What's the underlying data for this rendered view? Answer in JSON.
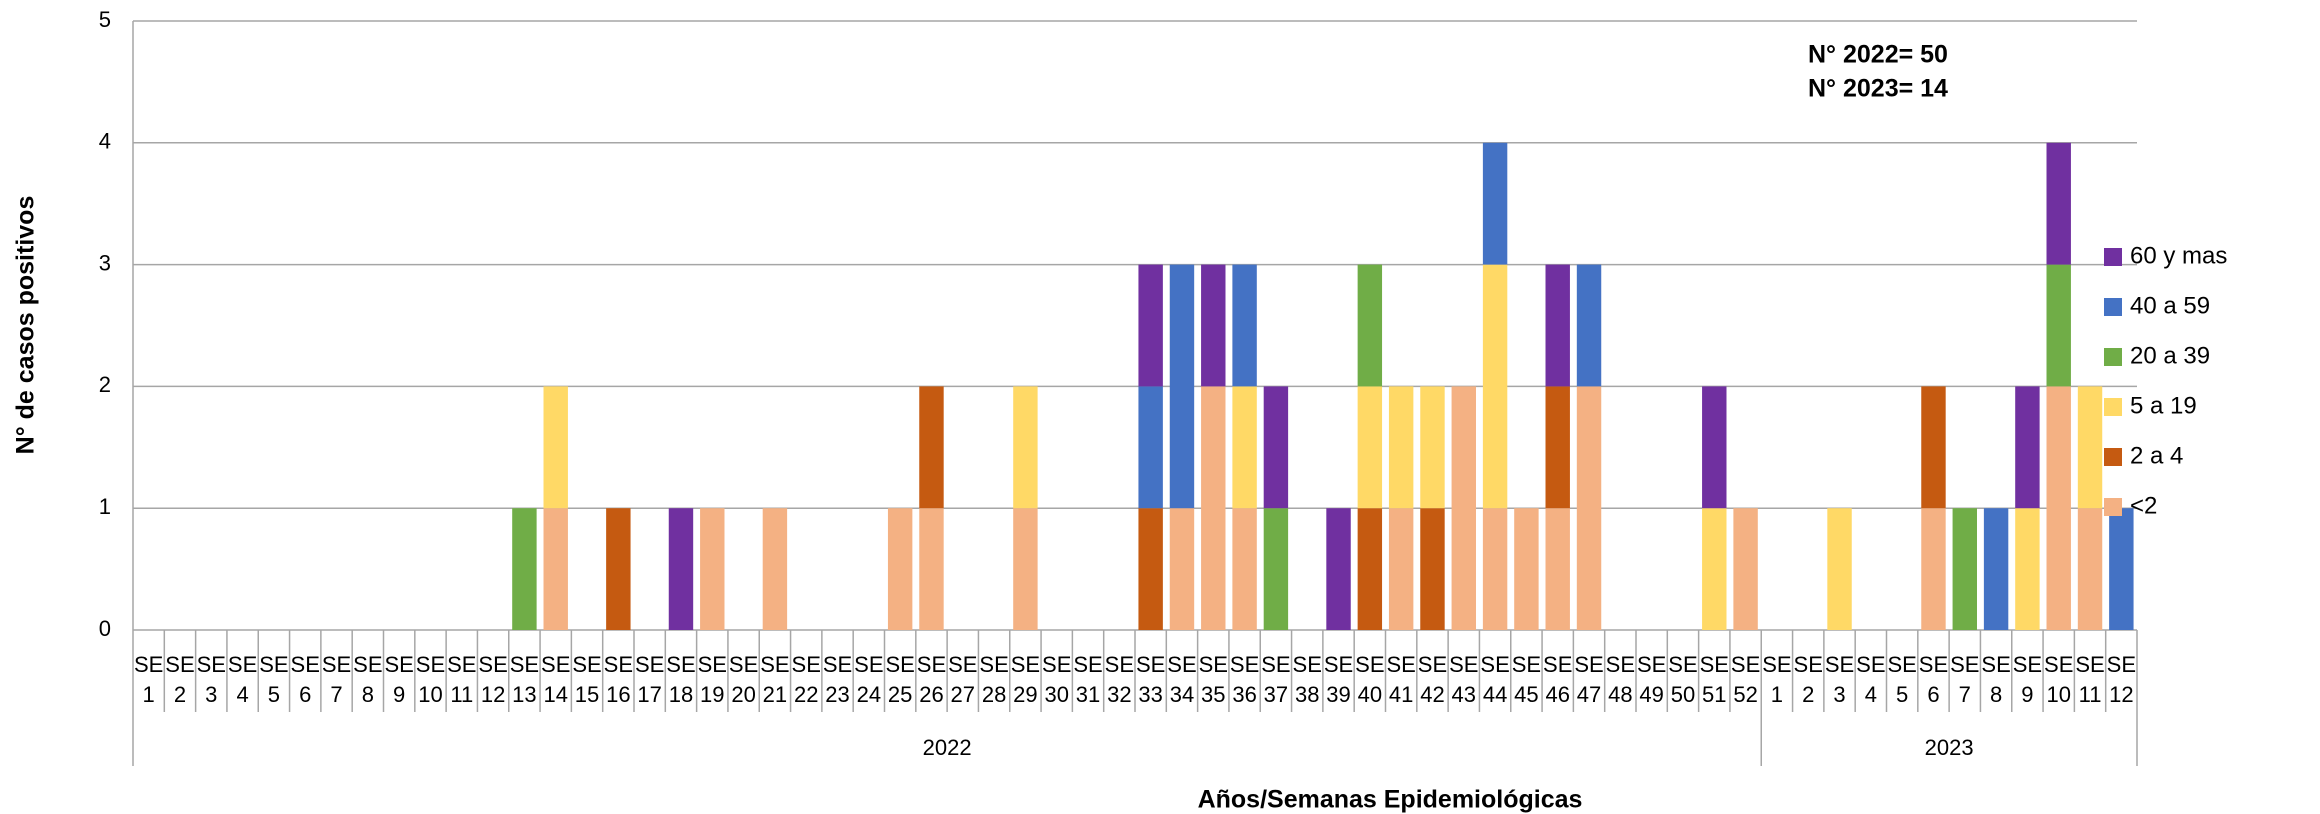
{
  "chart_data": {
    "type": "stacked_bar",
    "x_label": "Años/Semanas Epidemiológicas",
    "y_label": "N° de casos positivos",
    "annotations": [
      "N° 2022= 50",
      "N° 2023= 14"
    ],
    "categories": [
      "SE 1",
      "SE 2",
      "SE 3",
      "SE 4",
      "SE 5",
      "SE 6",
      "SE 7",
      "SE 8",
      "SE 9",
      "SE 10",
      "SE 11",
      "SE 12",
      "SE 13",
      "SE 14",
      "SE 15",
      "SE 16",
      "SE 17",
      "SE 18",
      "SE 19",
      "SE 20",
      "SE 21",
      "SE 22",
      "SE 23",
      "SE 24",
      "SE 25",
      "SE 26",
      "SE 27",
      "SE 28",
      "SE 29",
      "SE 30",
      "SE 31",
      "SE 32",
      "SE 33",
      "SE 34",
      "SE 35",
      "SE 36",
      "SE 37",
      "SE 38",
      "SE 39",
      "SE 40",
      "SE 41",
      "SE 42",
      "SE 43",
      "SE 44",
      "SE 45",
      "SE 46",
      "SE 47",
      "SE 48",
      "SE 49",
      "SE 50",
      "SE 51",
      "SE 52",
      "SE 1",
      "SE 2",
      "SE 3",
      "SE 4",
      "SE 5",
      "SE 6",
      "SE 7",
      "SE 8",
      "SE 9",
      "SE 10",
      "SE 11",
      "SE 12"
    ],
    "groups": [
      {
        "label": "2022",
        "span": 52
      },
      {
        "label": "2023",
        "span": 12
      }
    ],
    "series": [
      {
        "name": "<2",
        "color": "#f4b183",
        "values": [
          0,
          0,
          0,
          0,
          0,
          0,
          0,
          0,
          0,
          0,
          0,
          0,
          0,
          1,
          0,
          0,
          0,
          0,
          1,
          0,
          1,
          0,
          0,
          0,
          1,
          1,
          0,
          0,
          1,
          0,
          0,
          0,
          0,
          1,
          2,
          1,
          0,
          0,
          0,
          0,
          1,
          0,
          2,
          1,
          1,
          1,
          2,
          0,
          0,
          0,
          0,
          1,
          0,
          0,
          0,
          0,
          0,
          1,
          0,
          0,
          0,
          2,
          1,
          0
        ]
      },
      {
        "name": "2 a 4",
        "color": "#c55a11",
        "values": [
          0,
          0,
          0,
          0,
          0,
          0,
          0,
          0,
          0,
          0,
          0,
          0,
          0,
          0,
          0,
          1,
          0,
          0,
          0,
          0,
          0,
          0,
          0,
          0,
          0,
          1,
          0,
          0,
          0,
          0,
          0,
          0,
          1,
          0,
          0,
          0,
          0,
          0,
          0,
          1,
          0,
          1,
          0,
          0,
          0,
          1,
          0,
          0,
          0,
          0,
          0,
          0,
          0,
          0,
          0,
          0,
          0,
          1,
          0,
          0,
          0,
          0,
          0,
          0
        ]
      },
      {
        "name": "5 a 19",
        "color": "#ffd966",
        "values": [
          0,
          0,
          0,
          0,
          0,
          0,
          0,
          0,
          0,
          0,
          0,
          0,
          0,
          1,
          0,
          0,
          0,
          0,
          0,
          0,
          0,
          0,
          0,
          0,
          0,
          0,
          0,
          0,
          1,
          0,
          0,
          0,
          0,
          0,
          0,
          1,
          0,
          0,
          0,
          1,
          1,
          1,
          0,
          2,
          0,
          0,
          0,
          0,
          0,
          0,
          1,
          0,
          0,
          0,
          1,
          0,
          0,
          0,
          0,
          0,
          1,
          0,
          1,
          0
        ]
      },
      {
        "name": "20 a 39",
        "color": "#70ad47",
        "values": [
          0,
          0,
          0,
          0,
          0,
          0,
          0,
          0,
          0,
          0,
          0,
          0,
          1,
          0,
          0,
          0,
          0,
          0,
          0,
          0,
          0,
          0,
          0,
          0,
          0,
          0,
          0,
          0,
          0,
          0,
          0,
          0,
          0,
          0,
          0,
          0,
          1,
          0,
          0,
          1,
          0,
          0,
          0,
          0,
          0,
          0,
          0,
          0,
          0,
          0,
          0,
          0,
          0,
          0,
          0,
          0,
          0,
          0,
          1,
          0,
          0,
          1,
          0,
          0
        ]
      },
      {
        "name": "40 a 59",
        "color": "#4472c4",
        "values": [
          0,
          0,
          0,
          0,
          0,
          0,
          0,
          0,
          0,
          0,
          0,
          0,
          0,
          0,
          0,
          0,
          0,
          0,
          0,
          0,
          0,
          0,
          0,
          0,
          0,
          0,
          0,
          0,
          0,
          0,
          0,
          0,
          1,
          2,
          0,
          1,
          0,
          0,
          0,
          0,
          0,
          0,
          0,
          1,
          0,
          0,
          1,
          0,
          0,
          0,
          0,
          0,
          0,
          0,
          0,
          0,
          0,
          0,
          0,
          1,
          0,
          0,
          0,
          1
        ]
      },
      {
        "name": "60 y mas",
        "color": "#7030a0",
        "values": [
          0,
          0,
          0,
          0,
          0,
          0,
          0,
          0,
          0,
          0,
          0,
          0,
          0,
          0,
          0,
          0,
          0,
          1,
          0,
          0,
          0,
          0,
          0,
          0,
          0,
          0,
          0,
          0,
          0,
          0,
          0,
          0,
          1,
          0,
          1,
          0,
          1,
          0,
          1,
          0,
          0,
          0,
          0,
          0,
          0,
          1,
          0,
          0,
          0,
          0,
          1,
          0,
          0,
          0,
          0,
          0,
          0,
          0,
          0,
          0,
          1,
          1,
          0,
          0
        ]
      }
    ],
    "ylim": [
      0,
      5
    ],
    "yticks": [
      0,
      1,
      2,
      3,
      4,
      5
    ],
    "grid": true
  }
}
